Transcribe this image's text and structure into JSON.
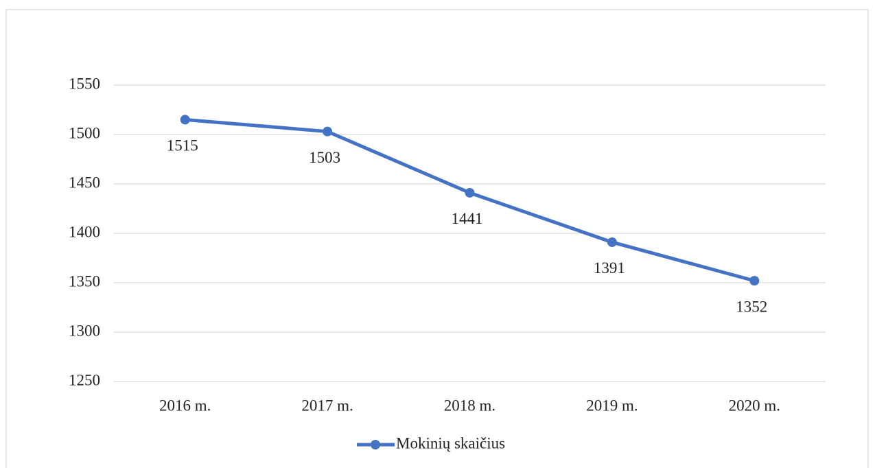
{
  "chart_data": {
    "type": "line",
    "categories": [
      "2016 m.",
      "2017 m.",
      "2018 m.",
      "2019 m.",
      "2020 m."
    ],
    "series": [
      {
        "name": "Mokinių skaičius",
        "color": "#4472c4",
        "values": [
          1515,
          1503,
          1441,
          1391,
          1352
        ]
      }
    ],
    "ylim": [
      1250,
      1550
    ],
    "yticks": [
      1250,
      1300,
      1350,
      1400,
      1450,
      1500,
      1550
    ],
    "grid": true,
    "data_labels": true,
    "legend": "bottom"
  }
}
